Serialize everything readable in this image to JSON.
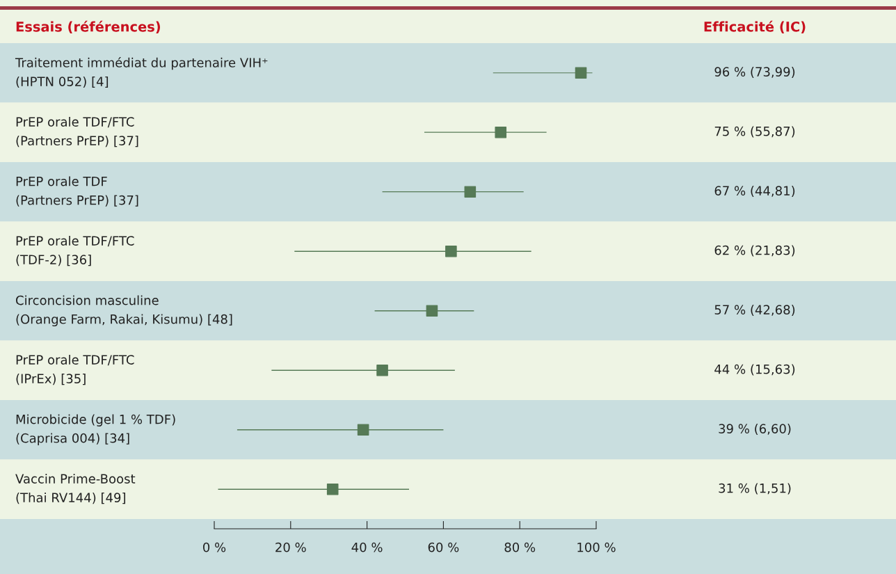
{
  "chart_data": {
    "type": "scatter",
    "orientation": "horizontal",
    "ylabel": "Essais (références)",
    "annotations": [
      "Efficacité (IC)"
    ],
    "categories": [
      "Traitement immédiat du partenaire VIH⁺\n(HPTN 052) [4]",
      "PrEP orale TDF/FTC\n(Partners PrEP) [37]",
      "PrEP orale TDF\n(Partners PrEP) [37]",
      "PrEP orale TDF/FTC\n(TDF-2) [36]",
      "Circoncision masculine\n(Orange Farm, Rakai, Kisumu) [48]",
      "PrEP orale TDF/FTC\n(IPrEx) [35]",
      "Microbicide (gel 1 % TDF)\n(Caprisa 004) [34]",
      "Vaccin Prime-Boost\n(Thai RV144) [49]"
    ],
    "values": [
      96,
      75,
      67,
      62,
      57,
      44,
      39,
      31
    ],
    "errors": [
      [
        73,
        99
      ],
      [
        55,
        87
      ],
      [
        44,
        81
      ],
      [
        21,
        83
      ],
      [
        42,
        68
      ],
      [
        15,
        63
      ],
      [
        6,
        60
      ],
      [
        1,
        51
      ]
    ],
    "value_labels": [
      "96 % (73,99)",
      "75 % (55,87)",
      "67 % (44,81)",
      "62 % (21,83)",
      "57 % (42,68)",
      "44 % (15,63)",
      "39 % (6,60)",
      "31 % (1,51)"
    ],
    "color": "#567a56",
    "marker": "square",
    "grid": false,
    "legend": false,
    "xlim": [
      0,
      100
    ],
    "xticks": [
      {
        "value": 0,
        "label": "0 %"
      },
      {
        "value": 20,
        "label": "20 %"
      },
      {
        "value": 40,
        "label": "40 %"
      },
      {
        "value": 60,
        "label": "60 %"
      },
      {
        "value": 80,
        "label": "80 %"
      },
      {
        "value": 100,
        "label": "100 %"
      }
    ]
  }
}
